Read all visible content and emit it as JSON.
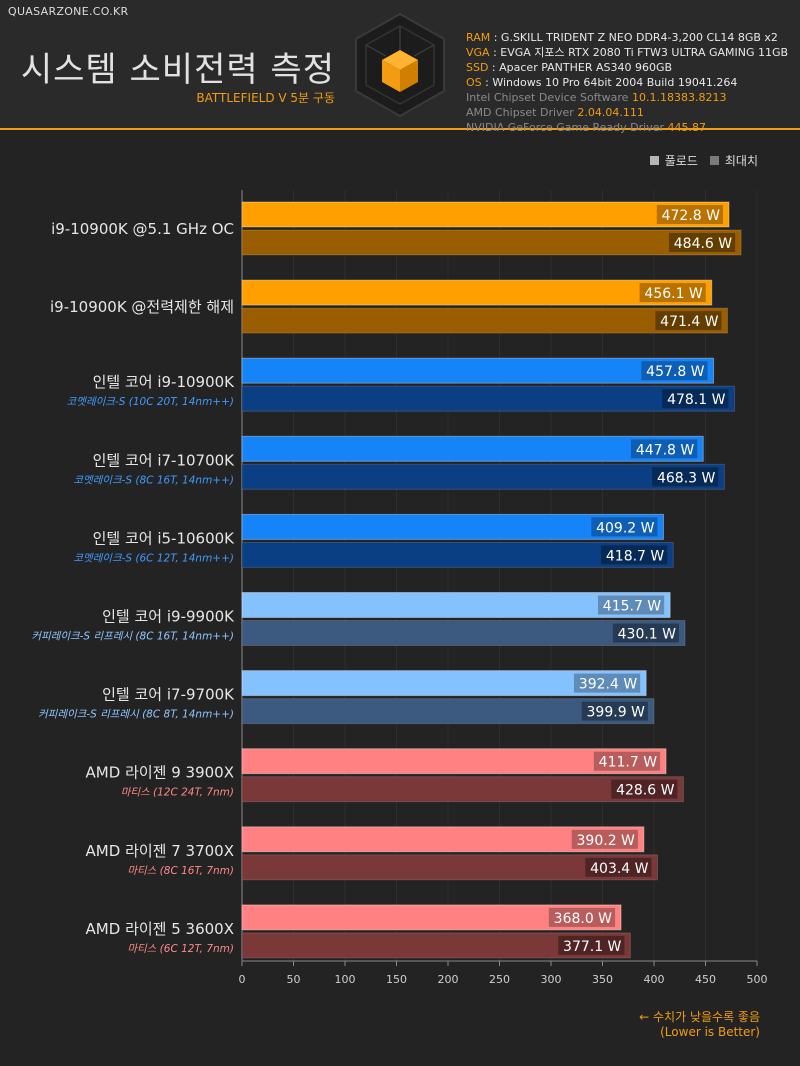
{
  "site_name": "QUASARZONE.CO.KR",
  "title": "시스템 소비전력 측정",
  "subtitle": "BATTLEFIELD V 5분 구동",
  "specs": [
    {
      "key": "RAM",
      "value": "G.SKILL TRIDENT Z NEO DDR4-3,200 CL14 8GB x2"
    },
    {
      "key": "VGA",
      "value": "EVGA 지포스 RTX 2080 Ti FTW3 ULTRA GAMING 11GB"
    },
    {
      "key": "SSD",
      "value": "Apacer PANTHER AS340 960GB"
    },
    {
      "key": "OS",
      "value": "Windows 10 Pro 64bit 2004 Build 19041.264"
    }
  ],
  "drivers": [
    {
      "label": "Intel Chipset Device Software",
      "version": "10.1.18383.8213"
    },
    {
      "label": "AMD Chipset Driver",
      "version": "2.04.04.111"
    },
    {
      "label": "NVIDIA GeForce Game Ready Driver",
      "version": "445.87"
    }
  ],
  "colors": {
    "orange_load": "#ff9f00",
    "orange_max": "#9a5e00",
    "blue_load": "#1484f8",
    "blue_max": "#0b3f83",
    "lightblue_load": "#84c1ff",
    "lightblue_max": "#3c5a80",
    "red_load": "#ff8181",
    "red_max": "#7b3838",
    "sub_blue": "#3d9bff",
    "sub_lightblue": "#8fc6ff",
    "sub_red": "#ff8787"
  },
  "footer": {
    "note": "← 수치가 낮을수록 좋음",
    "note_en": "(Lower is Better)"
  },
  "chart_data": {
    "type": "bar",
    "orientation": "horizontal",
    "unit": "W",
    "xlim": [
      0,
      500
    ],
    "xticks": [
      "0",
      "50",
      "100",
      "150",
      "200",
      "250",
      "300",
      "350",
      "400",
      "450",
      "500"
    ],
    "legend": [
      {
        "label": "풀로드",
        "color": "#b5b5b5"
      },
      {
        "label": "최대치",
        "color": "#7a7a7a"
      }
    ],
    "legend_position": "top-right",
    "categories": [
      {
        "name": "i9-10900K @5.1 GHz OC",
        "sub": "",
        "group": "orange"
      },
      {
        "name": "i9-10900K @전력제한 해제",
        "sub": "",
        "group": "orange"
      },
      {
        "name": "인텔 코어 i9-10900K",
        "sub": "코멧레이크-S (10C 20T, 14nm++)",
        "group": "blue"
      },
      {
        "name": "인텔 코어 i7-10700K",
        "sub": "코멧레이크-S (8C 16T, 14nm++)",
        "group": "blue"
      },
      {
        "name": "인텔 코어 i5-10600K",
        "sub": "코멧레이크-S (6C 12T, 14nm++)",
        "group": "blue"
      },
      {
        "name": "인텔 코어 i9-9900K",
        "sub": "커피레이크-S 리프레시 (8C 16T, 14nm++)",
        "group": "lightblue"
      },
      {
        "name": "인텔 코어 i7-9700K",
        "sub": "커피레이크-S 리프레시 (8C 8T, 14nm++)",
        "group": "lightblue"
      },
      {
        "name": "AMD 라이젠 9 3900X",
        "sub": "마티스 (12C 24T, 7nm)",
        "group": "red"
      },
      {
        "name": "AMD 라이젠 7 3700X",
        "sub": "마티스 (8C 16T, 7nm)",
        "group": "red"
      },
      {
        "name": "AMD 라이젠 5 3600X",
        "sub": "마티스 (6C 12T, 7nm)",
        "group": "red"
      }
    ],
    "series": [
      {
        "name": "풀로드",
        "values": [
          472.8,
          456.1,
          457.8,
          447.8,
          409.2,
          415.7,
          392.4,
          411.7,
          390.2,
          368.0
        ]
      },
      {
        "name": "최대치",
        "values": [
          484.6,
          471.4,
          478.1,
          468.3,
          418.7,
          430.1,
          399.9,
          428.6,
          403.4,
          377.1
        ]
      }
    ]
  }
}
